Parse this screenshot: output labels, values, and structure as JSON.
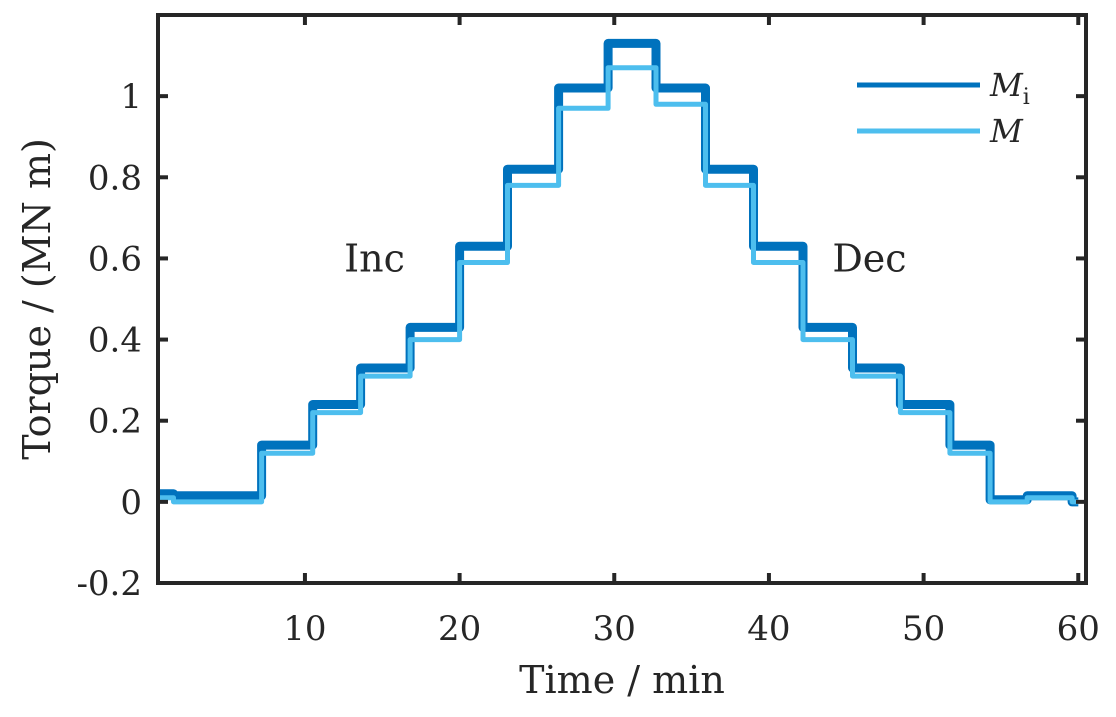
{
  "chart_data": {
    "type": "line",
    "xlabel": "Time / min",
    "ylabel": "Torque / (MN m)",
    "xlim": [
      0.5,
      60.5
    ],
    "ylim": [
      -0.2,
      1.2
    ],
    "xticks": [
      "10",
      "20",
      "30",
      "40",
      "50",
      "60"
    ],
    "xtick_values": [
      10,
      20,
      30,
      40,
      50,
      60
    ],
    "yticks": [
      "-0.2",
      "0",
      "0.2",
      "0.4",
      "0.6",
      "0.8",
      "1"
    ],
    "ytick_values": [
      -0.2,
      0,
      0.2,
      0.4,
      0.6,
      0.8,
      1.0
    ],
    "grid": false,
    "legend_position": "top-right",
    "annotations": [
      {
        "text": "Inc",
        "x": 14.5,
        "y": 0.6
      },
      {
        "text": "Dec",
        "x": 46.5,
        "y": 0.6
      }
    ],
    "series": [
      {
        "name": "M",
        "name_subscript": "i",
        "color": "#0072bd",
        "x": [
          0.5,
          1.5,
          1.5,
          7.2,
          7.2,
          10.5,
          10.5,
          13.6,
          13.6,
          16.8,
          16.8,
          20.0,
          20.0,
          23.1,
          23.1,
          26.4,
          26.4,
          29.6,
          29.6,
          32.7,
          32.7,
          35.9,
          35.9,
          39.0,
          39.0,
          42.2,
          42.2,
          45.4,
          45.4,
          48.5,
          48.5,
          51.7,
          51.7,
          54.3,
          54.3,
          56.7,
          56.7,
          59.6,
          59.6,
          60.0
        ],
        "y": [
          0.02,
          0.02,
          0.015,
          0.015,
          0.14,
          0.14,
          0.24,
          0.24,
          0.33,
          0.33,
          0.43,
          0.43,
          0.63,
          0.63,
          0.82,
          0.82,
          1.02,
          1.02,
          1.13,
          1.13,
          1.02,
          1.02,
          0.82,
          0.82,
          0.63,
          0.63,
          0.43,
          0.43,
          0.33,
          0.33,
          0.24,
          0.24,
          0.14,
          0.14,
          0.005,
          0.005,
          0.015,
          0.015,
          0.0,
          0.0
        ]
      },
      {
        "name": "M",
        "color": "#4dbeee",
        "x": [
          0.5,
          1.5,
          1.5,
          7.2,
          7.2,
          10.5,
          10.5,
          13.6,
          13.6,
          16.8,
          16.8,
          20.0,
          20.0,
          23.1,
          23.1,
          26.4,
          26.4,
          29.6,
          29.6,
          32.7,
          32.7,
          35.9,
          35.9,
          39.0,
          39.0,
          42.2,
          42.2,
          45.4,
          45.4,
          48.5,
          48.5,
          51.7,
          51.7,
          54.3,
          54.3,
          56.7,
          56.7,
          59.6,
          59.6,
          60.0
        ],
        "y": [
          0.01,
          0.01,
          0.0,
          0.0,
          0.12,
          0.12,
          0.22,
          0.22,
          0.31,
          0.31,
          0.4,
          0.4,
          0.59,
          0.59,
          0.78,
          0.78,
          0.97,
          0.97,
          1.07,
          1.07,
          0.98,
          0.98,
          0.78,
          0.78,
          0.59,
          0.59,
          0.4,
          0.4,
          0.31,
          0.31,
          0.22,
          0.22,
          0.12,
          0.12,
          0.0,
          0.0,
          0.01,
          0.01,
          0.0,
          0.0
        ]
      }
    ]
  }
}
